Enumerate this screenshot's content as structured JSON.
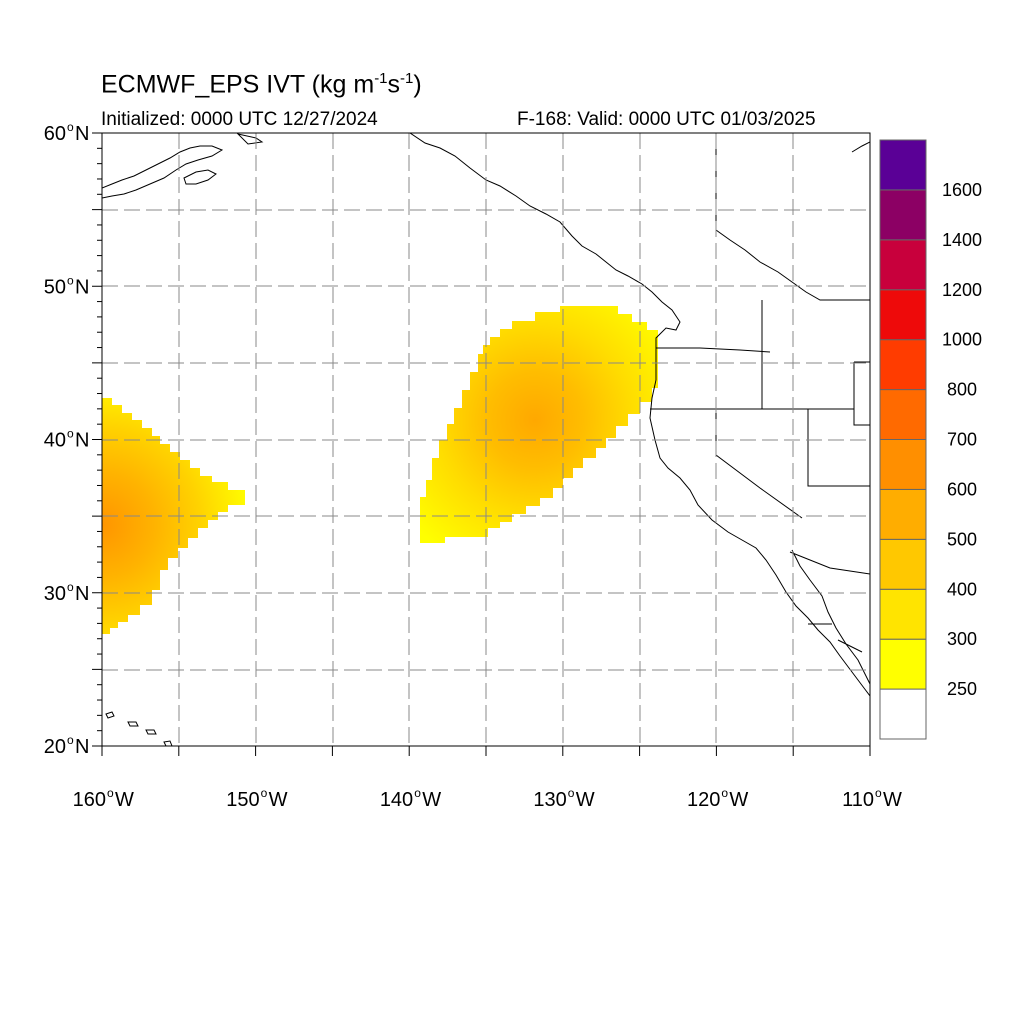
{
  "title": {
    "main": "ECMWF_EPS IVT (kg m",
    "exp1": "-1",
    "mid": "s",
    "exp2": "-1",
    "close": ")"
  },
  "subtitle": {
    "initialized": "Initialized: 0000 UTC 12/27/2024",
    "valid": "F-168: Valid: 0000 UTC 01/03/2025"
  },
  "axes": {
    "lat_labels": [
      {
        "deg": "60",
        "lat": 60
      },
      {
        "deg": "50",
        "lat": 50
      },
      {
        "deg": "40",
        "lat": 40
      },
      {
        "deg": "30",
        "lat": 30
      },
      {
        "deg": "20",
        "lat": 20
      }
    ],
    "lon_labels": [
      {
        "deg": "160",
        "lon": -160
      },
      {
        "deg": "150",
        "lon": -150
      },
      {
        "deg": "140",
        "lon": -140
      },
      {
        "deg": "130",
        "lon": -130
      },
      {
        "deg": "120",
        "lon": -120
      },
      {
        "deg": "110",
        "lon": -110
      }
    ],
    "lat_hemisphere": "N",
    "lon_hemisphere": "W",
    "degree_symbol": "o",
    "lat_range": [
      20,
      60
    ],
    "lon_range": [
      -160,
      -110
    ]
  },
  "colorbar": {
    "labels": [
      "250",
      "300",
      "400",
      "500",
      "600",
      "700",
      "800",
      "1000",
      "1200",
      "1400",
      "1600"
    ],
    "colors": [
      "#ffffff",
      "#ffff00",
      "#ffe400",
      "#ffc800",
      "#ffad00",
      "#ff8f00",
      "#ff6a00",
      "#ff3c00",
      "#ee0a0a",
      "#c8003c",
      "#8c0064",
      "#5a0096"
    ]
  },
  "ivt_field": {
    "units": "kg m-1 s-1",
    "thresholds": [
      250,
      300,
      400,
      500,
      600
    ],
    "features": [
      {
        "region": "central-pacific",
        "peak_lat": 34.5,
        "peak_lon": -160,
        "peak_ivt": 650
      },
      {
        "region": "northeast-pacific",
        "peak_lat": 41.5,
        "peak_lon": -131.5,
        "peak_ivt": 560
      }
    ]
  }
}
